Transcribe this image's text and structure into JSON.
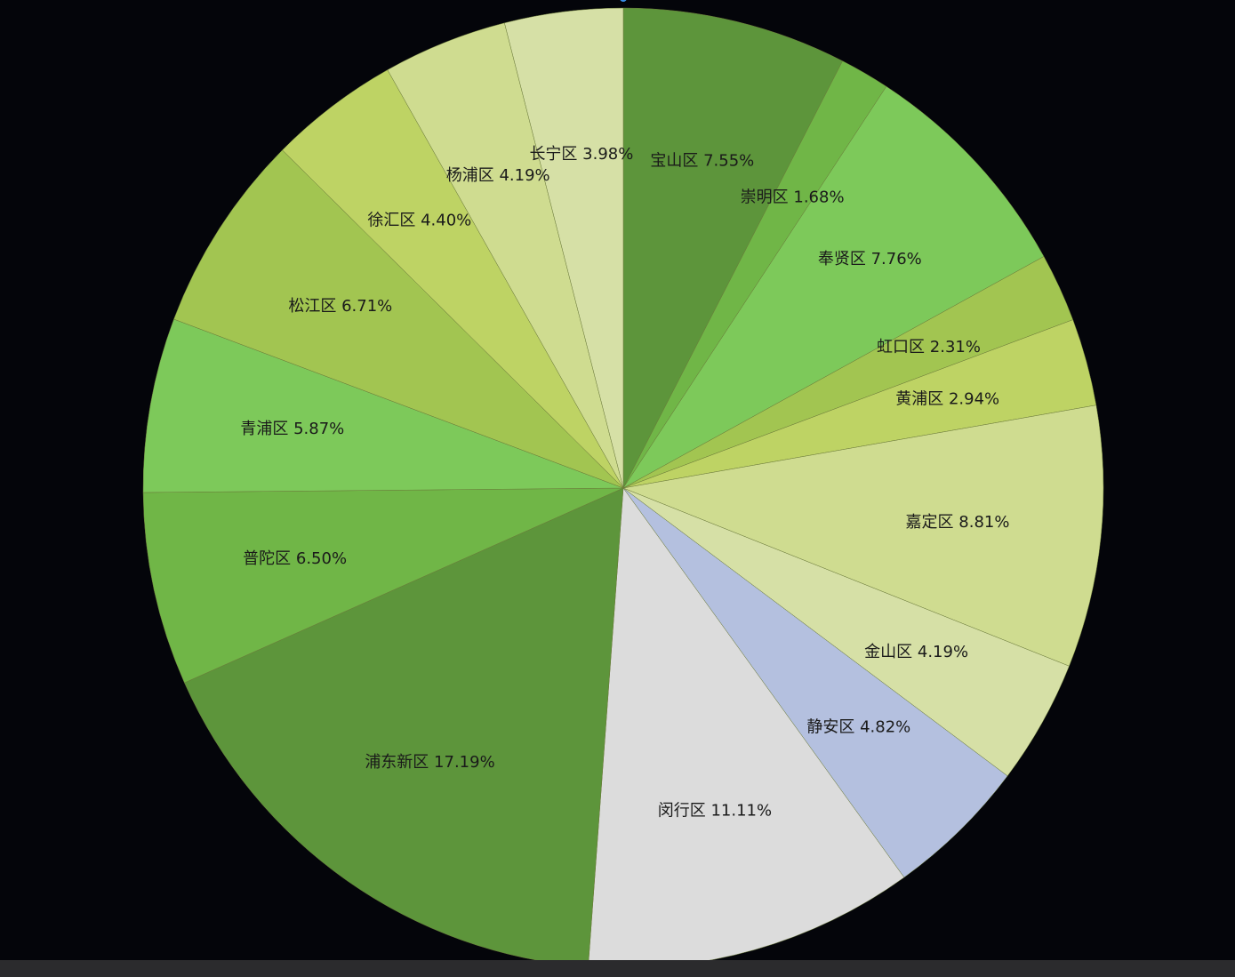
{
  "chart_data": {
    "type": "pie",
    "start": "top",
    "direction": "clockwise",
    "slices": [
      {
        "label": "宝山区",
        "percent": 7.55,
        "text": "宝山区 7.55%",
        "color": "#5d953b"
      },
      {
        "label": "崇明区",
        "percent": 1.68,
        "text": "崇明区 1.68%",
        "color": "#70b647"
      },
      {
        "label": "奉贤区",
        "percent": 7.76,
        "text": "奉贤区 7.76%",
        "color": "#7dc95a"
      },
      {
        "label": "虹口区",
        "percent": 2.31,
        "text": "虹口区 2.31%",
        "color": "#a2c551"
      },
      {
        "label": "黄浦区",
        "percent": 2.94,
        "text": "黄浦区 2.94%",
        "color": "#bed364"
      },
      {
        "label": "嘉定区",
        "percent": 8.81,
        "text": "嘉定区 8.81%",
        "color": "#cfdc90"
      },
      {
        "label": "金山区",
        "percent": 4.19,
        "text": "金山区 4.19%",
        "color": "#d6e0a6"
      },
      {
        "label": "静安区",
        "percent": 4.82,
        "text": "静安区 4.82%",
        "color": "#b4c0df"
      },
      {
        "label": "闵行区",
        "percent": 11.11,
        "text": "闵行区 11.11%",
        "color": "#dcdcdc"
      },
      {
        "label": "浦东新区",
        "percent": 17.19,
        "text": "浦东新区 17.19%",
        "color": "#5d953b"
      },
      {
        "label": "普陀区",
        "percent": 6.5,
        "text": "普陀区 6.50%",
        "color": "#70b647"
      },
      {
        "label": "青浦区",
        "percent": 5.87,
        "text": "青浦区 5.87%",
        "color": "#7dc95a"
      },
      {
        "label": "松江区",
        "percent": 6.71,
        "text": "松江区 6.71%",
        "color": "#a2c551"
      },
      {
        "label": "徐汇区",
        "percent": 4.4,
        "text": "徐汇区 4.40%",
        "color": "#bed364"
      },
      {
        "label": "杨浦区",
        "percent": 4.19,
        "text": "杨浦区 4.19%",
        "color": "#cfdc90"
      },
      {
        "label": "长宁区",
        "percent": 3.98,
        "text": "长宁区 3.98%",
        "color": "#d6e0a6"
      }
    ],
    "legend": "none",
    "colors": {
      "background": "#04050a",
      "label_text": "#1a1a1a",
      "slice_border": "#6b7a3a"
    }
  }
}
